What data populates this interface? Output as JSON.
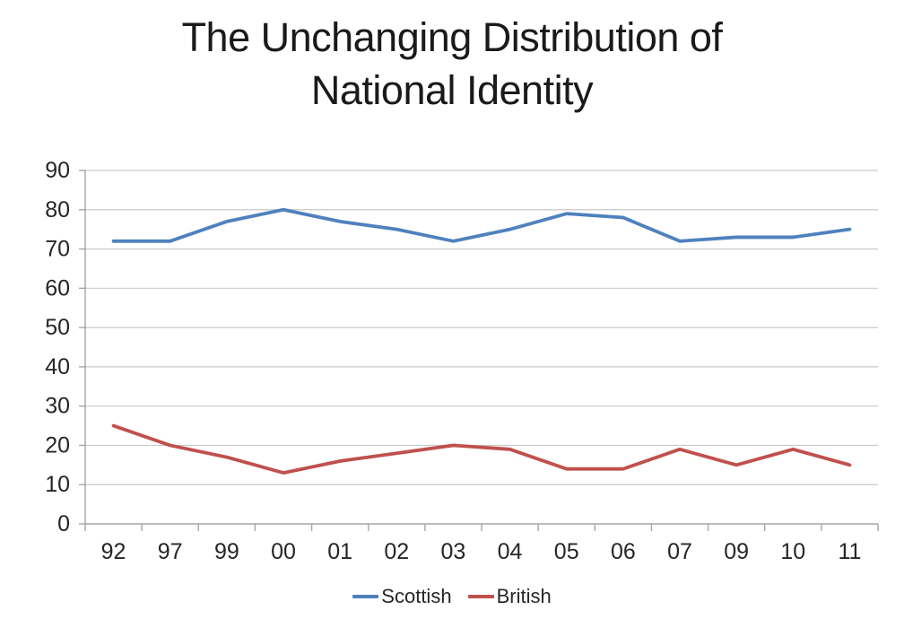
{
  "title_lines": [
    "The Unchanging Distribution of",
    "National Identity"
  ],
  "chart_data": {
    "type": "line",
    "title": "The Unchanging Distribution of National Identity",
    "xlabel": "",
    "ylabel": "",
    "categories": [
      "92",
      "97",
      "99",
      "00",
      "01",
      "02",
      "03",
      "04",
      "05",
      "06",
      "07",
      "09",
      "10",
      "11"
    ],
    "series": [
      {
        "name": "Scottish",
        "color": "#4F81BD",
        "values": [
          72,
          72,
          77,
          80,
          77,
          75,
          72,
          75,
          79,
          78,
          72,
          73,
          73,
          75
        ]
      },
      {
        "name": "British",
        "color": "#C0504D",
        "values": [
          25,
          20,
          17,
          13,
          16,
          18,
          20,
          19,
          14,
          14,
          19,
          15,
          19,
          15
        ]
      }
    ],
    "ylim": [
      0,
      90
    ],
    "ytick_step": 10,
    "grid": true,
    "legend_position": "bottom",
    "grid_color": "#c9c9c9",
    "axis_color": "#a6a6a6",
    "tick_label_color": "#262626"
  }
}
